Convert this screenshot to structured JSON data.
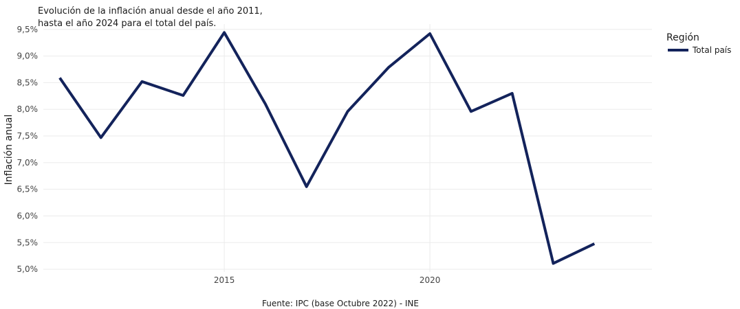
{
  "chart_data": {
    "type": "line",
    "title_lines": [
      "Evolución de la inflación anual desde el año 2011,",
      "hasta el año 2024 para el total del país."
    ],
    "ylabel": "Inflación anual",
    "xlabel": "",
    "source": "Fuente: IPC (base Octubre 2022) - INE",
    "legend_title": "Región",
    "legend_position": "top-right",
    "grid": true,
    "x_ticks": [
      {
        "value": 2015,
        "label": "2015"
      },
      {
        "value": 2020,
        "label": "2020"
      }
    ],
    "y_ticks": [
      {
        "value": 5.0,
        "label": "5,0%"
      },
      {
        "value": 5.5,
        "label": "5,5%"
      },
      {
        "value": 6.0,
        "label": "6,0%"
      },
      {
        "value": 6.5,
        "label": "6,5%"
      },
      {
        "value": 7.0,
        "label": "7,0%"
      },
      {
        "value": 7.5,
        "label": "7,5%"
      },
      {
        "value": 8.0,
        "label": "8,0%"
      },
      {
        "value": 8.5,
        "label": "8,5%"
      },
      {
        "value": 9.0,
        "label": "9,0%"
      },
      {
        "value": 9.5,
        "label": "9,5%"
      }
    ],
    "xlim": [
      2010.6,
      2025.4
    ],
    "ylim": [
      4.95,
      9.6
    ],
    "series": [
      {
        "name": "Total país",
        "color": "#13235b",
        "x": [
          2011,
          2012,
          2013,
          2014,
          2015,
          2016,
          2017,
          2018,
          2019,
          2020,
          2021,
          2022,
          2023,
          2024
        ],
        "values": [
          8.59,
          7.47,
          8.52,
          8.26,
          9.44,
          8.1,
          6.55,
          7.96,
          8.79,
          9.42,
          7.96,
          8.3,
          5.11,
          5.48
        ]
      }
    ]
  }
}
